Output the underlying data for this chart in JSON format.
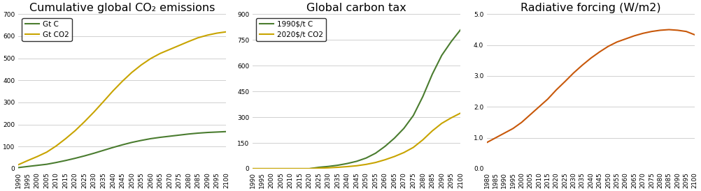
{
  "chart1": {
    "title": "Cumulative global CO₂ emissions",
    "years": [
      1990,
      1995,
      2000,
      2005,
      2010,
      2015,
      2020,
      2025,
      2030,
      2035,
      2040,
      2045,
      2050,
      2055,
      2060,
      2065,
      2070,
      2075,
      2080,
      2085,
      2090,
      2095,
      2100
    ],
    "gtc": [
      5,
      10,
      15,
      20,
      28,
      37,
      47,
      58,
      70,
      83,
      96,
      108,
      119,
      128,
      136,
      142,
      147,
      152,
      157,
      161,
      164,
      166,
      168
    ],
    "gtco2": [
      18,
      37,
      55,
      75,
      103,
      136,
      172,
      213,
      257,
      304,
      352,
      396,
      436,
      470,
      499,
      522,
      540,
      558,
      576,
      593,
      605,
      614,
      620
    ],
    "color_gtc": "#4a7c2f",
    "color_gtco2": "#c8a400",
    "legend_gtc": "Gt C",
    "legend_gtco2": "Gt CO2",
    "ylim": [
      0,
      700
    ],
    "yticks": [
      0,
      100,
      200,
      300,
      400,
      500,
      600,
      700
    ],
    "xlim": [
      1990,
      2100
    ],
    "xticks": [
      1990,
      1995,
      2000,
      2005,
      2010,
      2015,
      2020,
      2025,
      2030,
      2035,
      2040,
      2045,
      2050,
      2055,
      2060,
      2065,
      2070,
      2075,
      2080,
      2085,
      2090,
      2095,
      2100
    ]
  },
  "chart2": {
    "title": "Global carbon tax",
    "years": [
      1990,
      1995,
      2000,
      2005,
      2010,
      2015,
      2020,
      2025,
      2030,
      2035,
      2040,
      2045,
      2050,
      2055,
      2060,
      2065,
      2070,
      2075,
      2080,
      2085,
      2090,
      2095,
      2100
    ],
    "c1990": [
      0,
      0,
      0,
      0,
      0,
      0,
      0,
      8,
      13,
      20,
      30,
      43,
      62,
      90,
      130,
      178,
      235,
      310,
      420,
      550,
      660,
      740,
      810
    ],
    "c2020": [
      0,
      0,
      0,
      0,
      0,
      0,
      0,
      3,
      5,
      8,
      12,
      17,
      25,
      36,
      52,
      71,
      94,
      124,
      168,
      220,
      264,
      296,
      324
    ],
    "color_c1990": "#4a7c2f",
    "color_c2020": "#c8a400",
    "legend_c1990": "1990$/t C",
    "legend_c2020": "2020$/t CO2",
    "ylim": [
      0,
      900
    ],
    "yticks": [
      0,
      150,
      300,
      450,
      600,
      750,
      900
    ],
    "xlim": [
      1990,
      2100
    ],
    "xticks": [
      1990,
      1995,
      2000,
      2005,
      2010,
      2015,
      2020,
      2025,
      2030,
      2035,
      2040,
      2045,
      2050,
      2055,
      2060,
      2065,
      2070,
      2075,
      2080,
      2085,
      2090,
      2095,
      2100
    ]
  },
  "chart3": {
    "title": "Radiative forcing (W/m2)",
    "years": [
      1980,
      1985,
      1990,
      1995,
      2000,
      2005,
      2010,
      2015,
      2020,
      2025,
      2030,
      2035,
      2040,
      2045,
      2050,
      2055,
      2060,
      2065,
      2070,
      2075,
      2080,
      2085,
      2090,
      2095,
      2100
    ],
    "rf": [
      0.85,
      1.0,
      1.15,
      1.3,
      1.5,
      1.75,
      2.0,
      2.25,
      2.55,
      2.82,
      3.1,
      3.35,
      3.58,
      3.78,
      3.96,
      4.1,
      4.2,
      4.3,
      4.38,
      4.44,
      4.48,
      4.5,
      4.48,
      4.44,
      4.33
    ],
    "color_rf": "#c8580a",
    "ylim": [
      0.0,
      5.0
    ],
    "yticks": [
      0.0,
      1.0,
      2.0,
      3.0,
      4.0,
      5.0
    ],
    "xlim": [
      1980,
      2100
    ],
    "xticks": [
      1980,
      1985,
      1990,
      1995,
      2000,
      2005,
      2010,
      2015,
      2020,
      2025,
      2030,
      2035,
      2040,
      2045,
      2050,
      2055,
      2060,
      2065,
      2070,
      2075,
      2080,
      2085,
      2090,
      2095,
      2100
    ]
  },
  "background_color": "#ffffff",
  "grid_color": "#d0d0d0",
  "tick_label_rotation": 90,
  "tick_fontsize": 6.5,
  "title_fontsize": 11.5
}
